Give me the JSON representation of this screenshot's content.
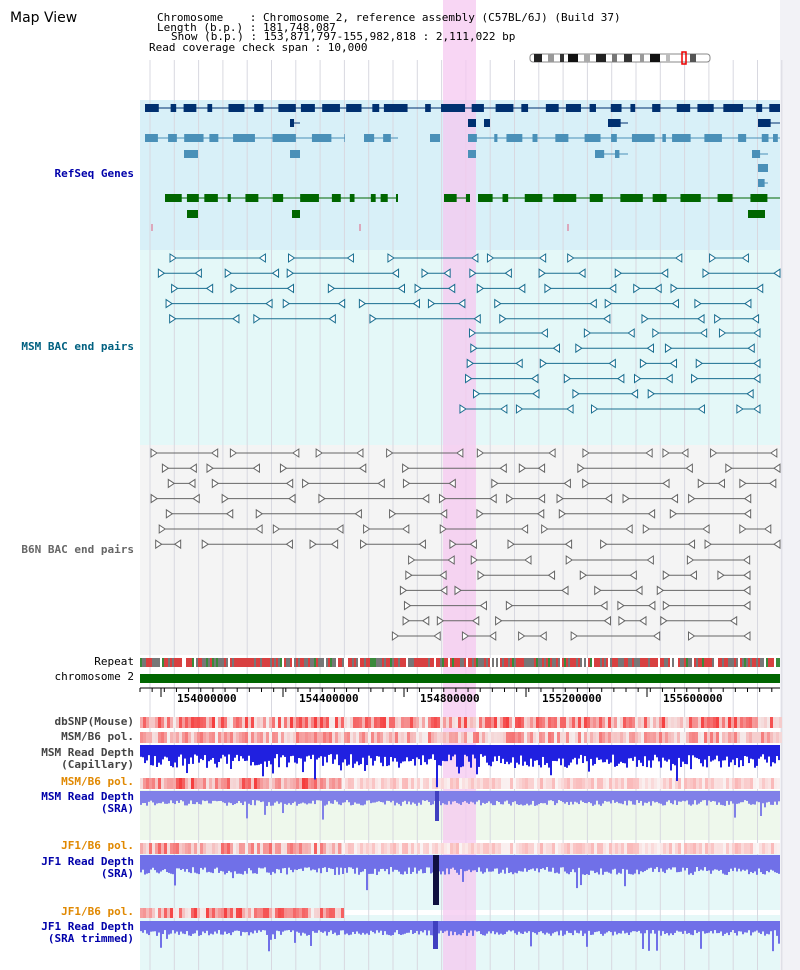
{
  "app": {
    "title": "Map View"
  },
  "header": {
    "chromosome_line": "Chromosome    : Chromosome 2, reference assembly (C57BL/6J) (Build 37)",
    "length_line": "Length (b.p.) : 181,748,087",
    "show_line": "Show (b.p.) : 153,871,797-155,982,818 : 2,111,022 bp",
    "coverage_line": "Read coverage check span : 10,000"
  },
  "tracks": {
    "refseq": "RefSeq Genes",
    "msm_bac": "MSM BAC end pairs",
    "b6n_bac": "B6N BAC end pairs",
    "repeat": "Repeat",
    "chromosome": "chromosome 2",
    "dbsnp": "dbSNP(Mouse)",
    "msm_b6_pol_1": "MSM/B6 pol.",
    "msm_read_depth_cap": "MSM Read Depth\n(Capillary)",
    "msm_b6_pol_2": "MSM/B6 pol.",
    "msm_read_depth_sra": "MSM Read Depth\n(SRA)",
    "jf1_b6_pol_1": "JF1/B6 pol.",
    "jf1_read_depth_sra": "JF1 Read Depth\n(SRA)",
    "jf1_b6_pol_2": "JF1/B6 pol.",
    "jf1_read_depth_trimmed": "JF1 Read Depth\n(SRA trimmed)"
  },
  "axis": {
    "ticks": [
      "154000000",
      "154400000",
      "154800000",
      "155200000",
      "155600000"
    ]
  },
  "colors": {
    "refseq_label": "#0000aa",
    "msm_label": "#006080",
    "b6n_label": "#555555",
    "orange_label": "#e08800",
    "blue_label": "#0000aa",
    "highlight": "#f5c8f0",
    "chromosome_bar": "#006600"
  }
}
